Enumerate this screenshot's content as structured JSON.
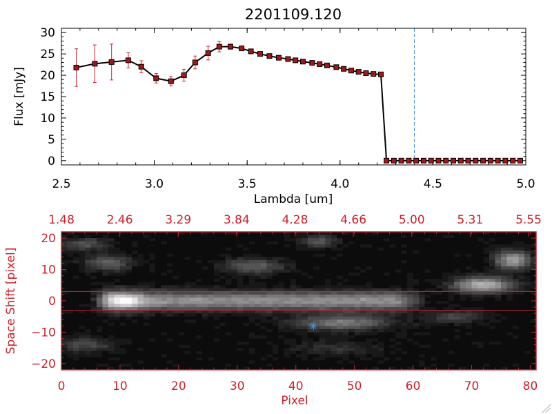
{
  "chart_data": [
    {
      "type": "line",
      "title": "2201109.120",
      "xlabel": "Lambda [um]",
      "ylabel": "Flux [mJy]",
      "xlim": [
        2.5,
        5.0
      ],
      "ylim": [
        -1,
        31
      ],
      "x_ticks": [
        2.5,
        3.0,
        3.5,
        4.0,
        4.5,
        5.0
      ],
      "x_tick_labels": [
        "2.5",
        "3.0",
        "3.5",
        "4.0",
        "4.5",
        "5.0"
      ],
      "y_ticks": [
        0,
        5,
        10,
        15,
        20,
        25,
        30
      ],
      "y_tick_labels": [
        "0",
        "5",
        "10",
        "15",
        "20",
        "25",
        "30"
      ],
      "vertical_reference_line": 4.4,
      "colors": {
        "line": "#000000",
        "marker": "#a01818",
        "errorbar": "#c8232c",
        "reference_line": "#3c8ce6"
      },
      "series": [
        {
          "x": [
            2.58,
            2.68,
            2.77,
            2.86,
            2.93,
            3.01,
            3.09,
            3.16,
            3.22,
            3.29,
            3.35,
            3.41,
            3.47,
            3.52,
            3.57,
            3.62,
            3.67,
            3.72,
            3.76,
            3.8,
            3.85,
            3.89,
            3.93,
            3.98,
            4.02,
            4.06,
            4.1,
            4.14,
            4.18,
            4.22,
            4.25,
            4.29,
            4.33,
            4.37,
            4.41,
            4.45,
            4.49,
            4.53,
            4.57,
            4.61,
            4.65,
            4.69,
            4.73,
            4.77,
            4.81,
            4.85,
            4.89,
            4.93,
            4.97
          ],
          "y": [
            21.8,
            22.7,
            23.1,
            23.5,
            22.0,
            19.3,
            18.6,
            20.0,
            23.0,
            25.2,
            26.7,
            26.7,
            26.3,
            25.6,
            25.0,
            24.5,
            24.1,
            23.8,
            23.5,
            23.2,
            22.9,
            22.6,
            22.3,
            21.9,
            21.5,
            21.1,
            20.8,
            20.5,
            20.3,
            20.2,
            0,
            0,
            0,
            0,
            0,
            0,
            0,
            0,
            0,
            0,
            0,
            0,
            0,
            0,
            0,
            0,
            0,
            0,
            0
          ],
          "yerr": [
            4.4,
            4.4,
            4.2,
            1.8,
            1.4,
            1.1,
            1.1,
            1.4,
            1.5,
            1.6,
            1.2,
            0.6,
            0.5,
            0.4,
            0.4,
            0.3,
            0.3,
            0.3,
            0.3,
            0.3,
            0.3,
            0.3,
            0.3,
            0.3,
            0.3,
            0.3,
            0.3,
            0.3,
            0.3,
            0.3,
            0.1,
            0.1,
            0.1,
            0.1,
            0.1,
            0.1,
            0.1,
            0.1,
            0.1,
            0.1,
            0.1,
            0.1,
            0.1,
            0.1,
            0.1,
            0.1,
            0.1,
            0.1,
            0.1
          ]
        }
      ]
    },
    {
      "type": "heatmap",
      "xlabel": "Pixel",
      "ylabel": "Space Shift [pixel]",
      "xlim": [
        0,
        81
      ],
      "ylim": [
        -22,
        22
      ],
      "x_ticks": [
        0,
        10,
        20,
        30,
        40,
        50,
        60,
        70,
        80
      ],
      "x_tick_labels": [
        "0",
        "10",
        "20",
        "30",
        "40",
        "50",
        "60",
        "70",
        "80"
      ],
      "y_ticks": [
        -20,
        -10,
        0,
        10,
        20
      ],
      "y_tick_labels": [
        "−20",
        "−10",
        "0",
        "10",
        "20"
      ],
      "top_axis_labels": [
        "1.48",
        "2.46",
        "3.29",
        "3.84",
        "4.28",
        "4.66",
        "5.00",
        "5.31",
        "5.55"
      ],
      "extraction_aperture": [
        -3,
        3
      ],
      "marker": {
        "x": 43,
        "y": -8
      },
      "colors": {
        "axis": "#c8232c",
        "aperture": "#c8232c",
        "marker": "#4a90e2"
      },
      "features": [
        {
          "kind": "trace",
          "x_start": 8,
          "x_end": 60,
          "y": 0,
          "peak_x": 10.5,
          "peak": 1.0,
          "sigma_y": 3.0
        },
        {
          "kind": "blob",
          "x": 8,
          "y": 12,
          "sx": 4,
          "sy": 2.5,
          "amp": 0.35
        },
        {
          "kind": "blob",
          "x": 4,
          "y": 18,
          "sx": 4,
          "sy": 2,
          "amp": 0.3
        },
        {
          "kind": "blob",
          "x": 33,
          "y": 11,
          "sx": 5,
          "sy": 2.5,
          "amp": 0.35
        },
        {
          "kind": "blob",
          "x": 44,
          "y": 19,
          "sx": 3,
          "sy": 2,
          "amp": 0.3
        },
        {
          "kind": "blob",
          "x": 72,
          "y": 5,
          "sx": 5,
          "sy": 2.5,
          "amp": 0.7
        },
        {
          "kind": "blob",
          "x": 77,
          "y": 13,
          "sx": 3,
          "sy": 3,
          "amp": 0.6
        },
        {
          "kind": "blob",
          "x": 48,
          "y": -7,
          "sx": 8,
          "sy": 2.5,
          "amp": 0.45
        },
        {
          "kind": "blob",
          "x": 67,
          "y": -5,
          "sx": 5,
          "sy": 2,
          "amp": 0.25
        },
        {
          "kind": "blob",
          "x": 4,
          "y": -14,
          "sx": 5,
          "sy": 2.5,
          "amp": 0.25
        },
        {
          "kind": "blob",
          "x": 47,
          "y": -15,
          "sx": 8,
          "sy": 2.5,
          "amp": 0.15
        }
      ]
    }
  ]
}
